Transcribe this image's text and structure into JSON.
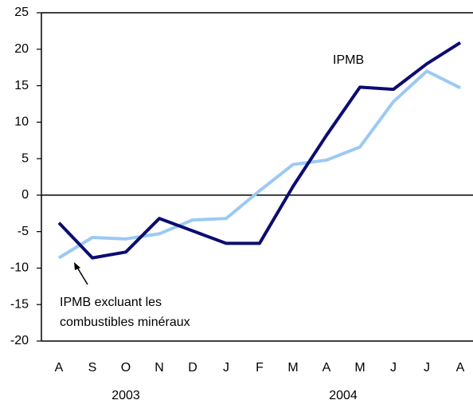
{
  "chart_data": {
    "type": "line",
    "categories": [
      "A",
      "S",
      "O",
      "N",
      "D",
      "J",
      "F",
      "M",
      "A",
      "M",
      "J",
      "J",
      "A"
    ],
    "year_labels": [
      "2003",
      "2004"
    ],
    "series": [
      {
        "color": "#0c0c70",
        "values": [
          -3.8,
          -8.6,
          -7.8,
          -3.2,
          -4.9,
          -6.6,
          -6.6,
          1.2,
          8.2,
          14.8,
          14.5,
          18.0,
          20.9
        ]
      },
      {
        "color": "#9cc9f4",
        "values": [
          -8.6,
          -5.8,
          -6.0,
          -5.3,
          -3.4,
          -3.2,
          0.6,
          4.2,
          4.8,
          6.6,
          12.8,
          17.0,
          14.7
        ]
      }
    ],
    "annotations": [
      {
        "lines": [
          "IPMB"
        ]
      },
      {
        "lines": [
          "IPMB excluant les",
          "combustibles minéraux"
        ]
      }
    ],
    "ylim": [
      -20,
      25
    ],
    "yticks": [
      -20,
      -15,
      -10,
      -5,
      0,
      5,
      10,
      15,
      20,
      25
    ]
  }
}
